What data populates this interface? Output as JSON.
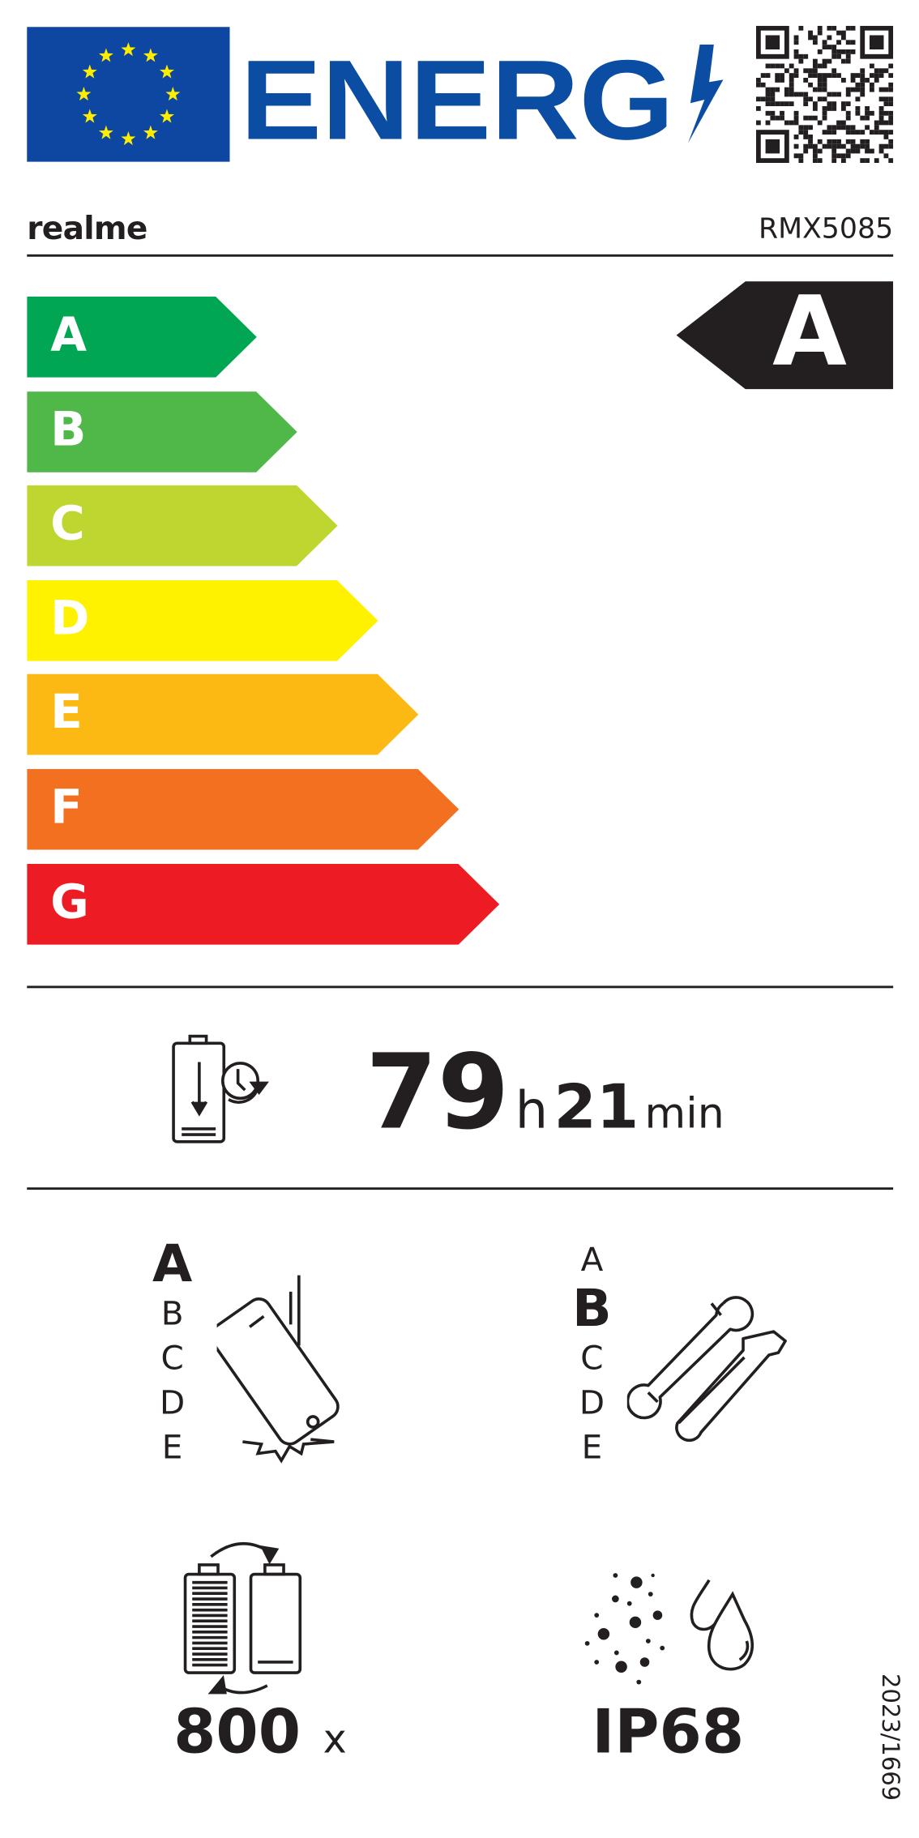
{
  "header": {
    "logo_text": "ENERG",
    "flag_icon": "eu-flag-icon",
    "qr_icon": "qr-code-icon"
  },
  "supplier": {
    "brand": "realme",
    "model": "RMX5085"
  },
  "scale": {
    "classes": [
      {
        "label": "A",
        "color": "#00a651"
      },
      {
        "label": "B",
        "color": "#50b848"
      },
      {
        "label": "C",
        "color": "#bed62f"
      },
      {
        "label": "D",
        "color": "#fff200"
      },
      {
        "label": "E",
        "color": "#fdb913"
      },
      {
        "label": "F",
        "color": "#f37021"
      },
      {
        "label": "G",
        "color": "#ed1c24"
      }
    ],
    "selected": "A",
    "selected_color": "#231f20"
  },
  "battery": {
    "hours": "79",
    "h_unit": "h",
    "minutes": "21",
    "min_unit": "min"
  },
  "drop": {
    "classes": [
      "A",
      "B",
      "C",
      "D",
      "E"
    ],
    "selected": "A"
  },
  "repair": {
    "classes": [
      "A",
      "B",
      "C",
      "D",
      "E"
    ],
    "selected": "B"
  },
  "cycles": {
    "value": "800",
    "unit": "x"
  },
  "ingress": {
    "value": "IP68"
  },
  "regulation": "2023/1669",
  "colors": {
    "eu_blue": "#0e47a1",
    "stars": "#ffed00",
    "energy_blue": "#0a4da2"
  }
}
